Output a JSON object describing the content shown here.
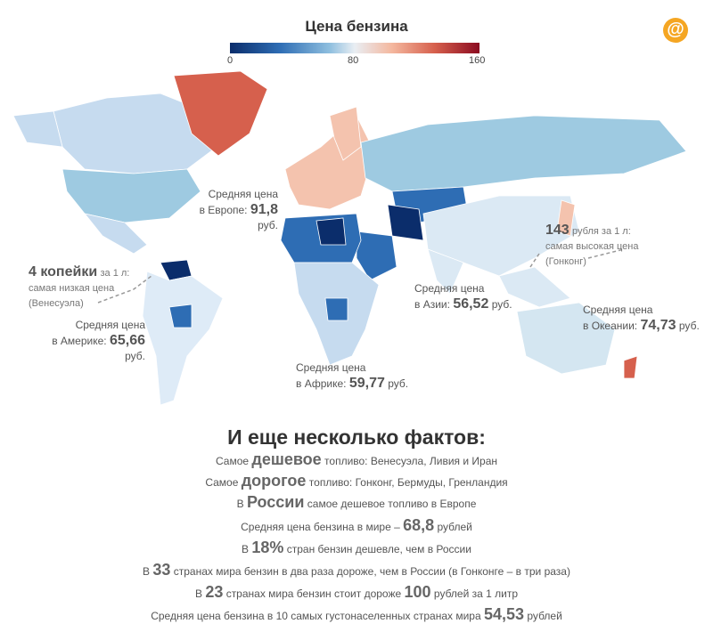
{
  "title": "Цена бензина",
  "scale": {
    "min": "0",
    "mid": "80",
    "max": "160"
  },
  "logo": "@",
  "annotations": {
    "europe": {
      "line1": "Средняя цена",
      "prefix": "в Европе:",
      "value": "91,8",
      "unit": "руб."
    },
    "america": {
      "line1": "Средняя цена",
      "prefix": "в Америке:",
      "value": "65,66",
      "unit": "руб."
    },
    "africa": {
      "line1": "Средняя цена",
      "prefix": "в Африке:",
      "value": "59,77",
      "unit": "руб."
    },
    "asia": {
      "line1": "Средняя цена",
      "prefix": "в Азии:",
      "value": "56,52",
      "unit": "руб."
    },
    "oceania": {
      "line1": "Средняя цена",
      "prefix": "в Океании:",
      "value": "74,73",
      "unit": "руб."
    },
    "venezuela": {
      "value": "4 копейки",
      "suffix": "за 1 л:",
      "line2": "самая низкая цена",
      "line3": "(Венесуэла)"
    },
    "hongkong": {
      "value": "143",
      "suffix": "рубля за 1 л:",
      "line2": "самая высокая цена",
      "line3": "(Гонконг)"
    }
  },
  "facts": {
    "title": "И еще несколько фактов:",
    "f1": {
      "a": "Самое",
      "hl": "дешевое",
      "b": "топливо: Венесуэла, Ливия и Иран"
    },
    "f2": {
      "a": "Самое",
      "hl": "дорогое",
      "b": "топливо: Гонконг, Бермуды, Гренландия"
    },
    "f3": {
      "a": "В",
      "hl": "России",
      "b": "самое дешевое топливо в Европе"
    },
    "f4": {
      "a": "Средняя цена бензина в мире –",
      "hl": "68,8",
      "b": "рублей"
    },
    "f5": {
      "a": "В",
      "hl": "18%",
      "b": "стран бензин дешевле, чем в России"
    },
    "f6": {
      "a": "В",
      "hl": "33",
      "b": "странах мира бензин в два раза дороже, чем в России (в Гонконге – в три раза)"
    },
    "f7": {
      "a": "В",
      "hl": "23",
      "b": "странах мира бензин стоит дороже",
      "hl2": "100",
      "c": "рублей за 1 литр"
    },
    "f8": {
      "a": "Средняя цена бензина в 10 самых густонаселенных странах мира",
      "hl": "54,53",
      "b": "рублей"
    }
  },
  "colors": {
    "greenland": "#d6604d",
    "north_america": "#c6dbef",
    "usa": "#9ecae1",
    "south_america": "#deebf7",
    "europe": "#f4c3ae",
    "russia": "#9ecae1",
    "africa": "#c6dbef",
    "asia": "#dbe9f4",
    "oceania": "#d4e6f1",
    "dark_blue": "#0b2d6b",
    "mid_blue": "#2e6db4"
  }
}
